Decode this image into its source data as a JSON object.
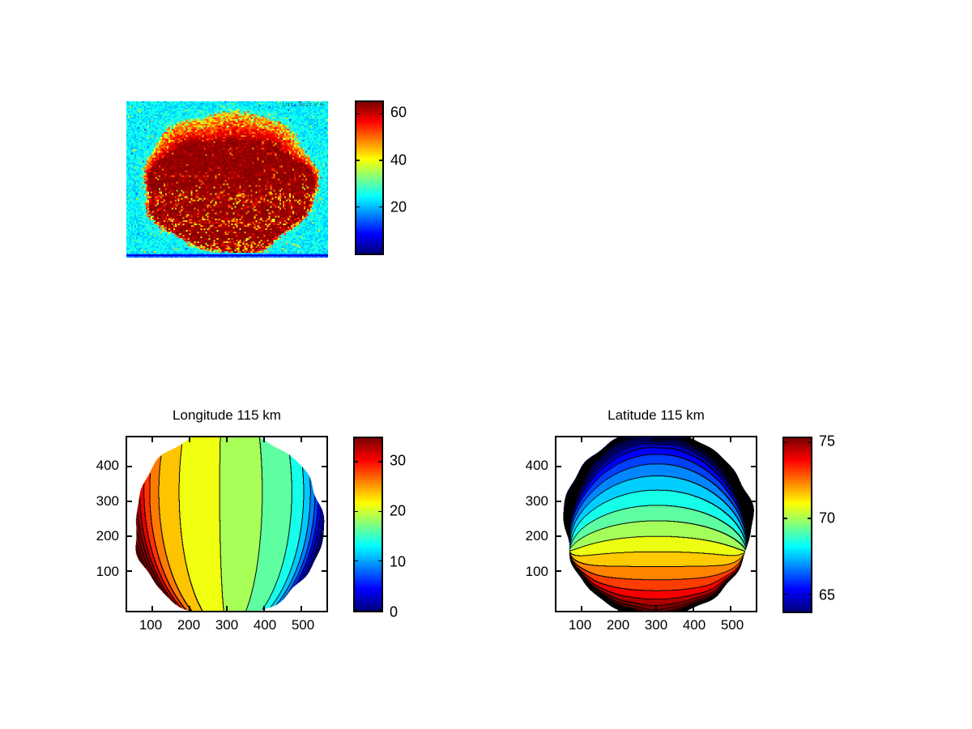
{
  "figure": {
    "background": "#ffffff",
    "text_color": "#000000",
    "line_color": "#000000",
    "colormap": "jet"
  },
  "chart_data": [
    {
      "type": "heatmap",
      "panel": "top-left-image",
      "description": "noisy infrared image of a planetary disk, jet colormap, cyan background, saturated dark-red disk with yellow-orange fringe at top",
      "annotation": "1/11. 0011 P 4",
      "value_range": [
        0,
        65.1
      ],
      "colorbar_ticks": [
        20,
        40,
        60
      ],
      "background_mean": 24,
      "background_noise": 8,
      "disk_value": 64,
      "top_fringe_depth": 26,
      "speckle_strength": 22,
      "noise_seed": 7
    },
    {
      "type": "contour-filled",
      "panel": "bottom-left",
      "title": "Longitude 115 km",
      "xticks": [
        100,
        200,
        300,
        400,
        500
      ],
      "yticks": [
        100,
        200,
        300,
        400
      ],
      "colorbar_ticks": [
        0,
        10,
        20,
        30
      ],
      "value_range": [
        0,
        34.8
      ],
      "contour_step": 2.5,
      "level_base": 0,
      "center_value": 19.5,
      "slope": 5.5,
      "shape_power_coeff": 2.2,
      "shape_power": 7,
      "pole_offset": 0.35,
      "pole_distance": 1.5,
      "orientation": "near-vertical meridian bands, red (~35) at left limb to dark blue (~0) at right limb, green (~18) at disk center, black contour bunching at lower-left and lower-right limb"
    },
    {
      "type": "contour-filled",
      "panel": "bottom-right",
      "title": "Latitude 115 km",
      "xticks": [
        100,
        200,
        300,
        400,
        500
      ],
      "yticks": [
        100,
        200,
        300,
        400
      ],
      "colorbar_ticks": [
        65,
        70,
        75
      ],
      "value_range": [
        63.85,
        75.32
      ],
      "contour_step": 0.8,
      "level_base": 64.0,
      "center_value": 69.8,
      "slope": 4.8,
      "shape_power_coeff": 0.45,
      "shape_power": 5,
      "pinch_offset": 0.42,
      "limb_blowup_power": 16,
      "orientation": "near-horizontal latitude bands, dark blue (~64) at top limb to red (~75) at bottom limb, green (~70) at center, contour pinch points on left/right limbs and black arc along bottom limb"
    }
  ]
}
